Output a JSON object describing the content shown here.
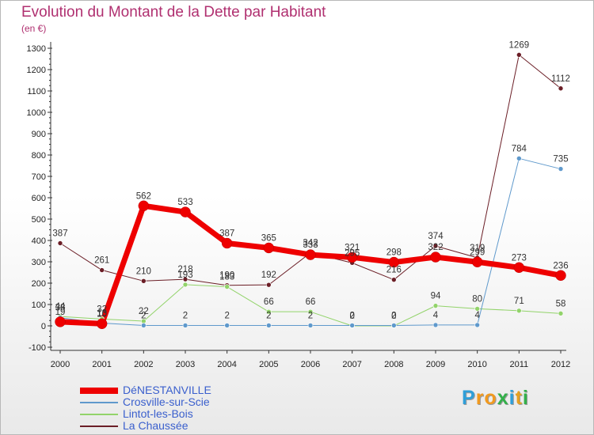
{
  "chart_data": {
    "type": "line",
    "title": "Evolution du Montant de la Dette par Habitant",
    "unit_label": "(en €)",
    "xlabel": "",
    "ylabel": "",
    "x": [
      "2000",
      "2001",
      "2002",
      "2003",
      "2004",
      "2005",
      "2006",
      "2007",
      "2008",
      "2009",
      "2010",
      "2011",
      "2012"
    ],
    "ylim": [
      -100,
      1300
    ],
    "y_ticks": [
      -100,
      0,
      100,
      200,
      300,
      400,
      500,
      600,
      700,
      800,
      900,
      1000,
      1100,
      1200,
      1300
    ],
    "grid": false,
    "legend_position": "bottom-left",
    "series": [
      {
        "name": "La Chaussée",
        "color": "#6b1e26",
        "width": 1,
        "values": [
          387,
          261,
          210,
          218,
          190,
          192,
          342,
          295,
          216,
          374,
          319,
          1269,
          1112
        ]
      },
      {
        "name": "Lintot-les-Bois",
        "color": "#92d36a",
        "width": 1,
        "values": [
          44,
          32,
          22,
          193,
          183,
          66,
          66,
          0,
          0,
          94,
          80,
          71,
          58
        ]
      },
      {
        "name": "Crosville-sur-Scie",
        "color": "#5f99cc",
        "width": 1,
        "values": [
          38,
          13,
          2,
          2,
          2,
          2,
          2,
          2,
          2,
          4,
          4,
          784,
          735
        ]
      },
      {
        "name": "DéNESTANVILLE",
        "color": "#ee0000",
        "width": 7,
        "values": [
          19,
          10,
          562,
          533,
          387,
          365,
          333,
          321,
          298,
          322,
          299,
          273,
          236
        ]
      }
    ],
    "legend_order": [
      "DéNESTANVILLE",
      "Crosville-sur-Scie",
      "Lintot-les-Bois",
      "La Chaussée"
    ]
  },
  "logo": {
    "letters": [
      "P",
      "r",
      "o",
      "x",
      "i",
      "t",
      "i"
    ],
    "colors": [
      "#2f9fd9",
      "#f29a1f",
      "#f29a1f",
      "#33b04a",
      "#2f9fd9",
      "#e6a020",
      "#33b04a"
    ]
  }
}
